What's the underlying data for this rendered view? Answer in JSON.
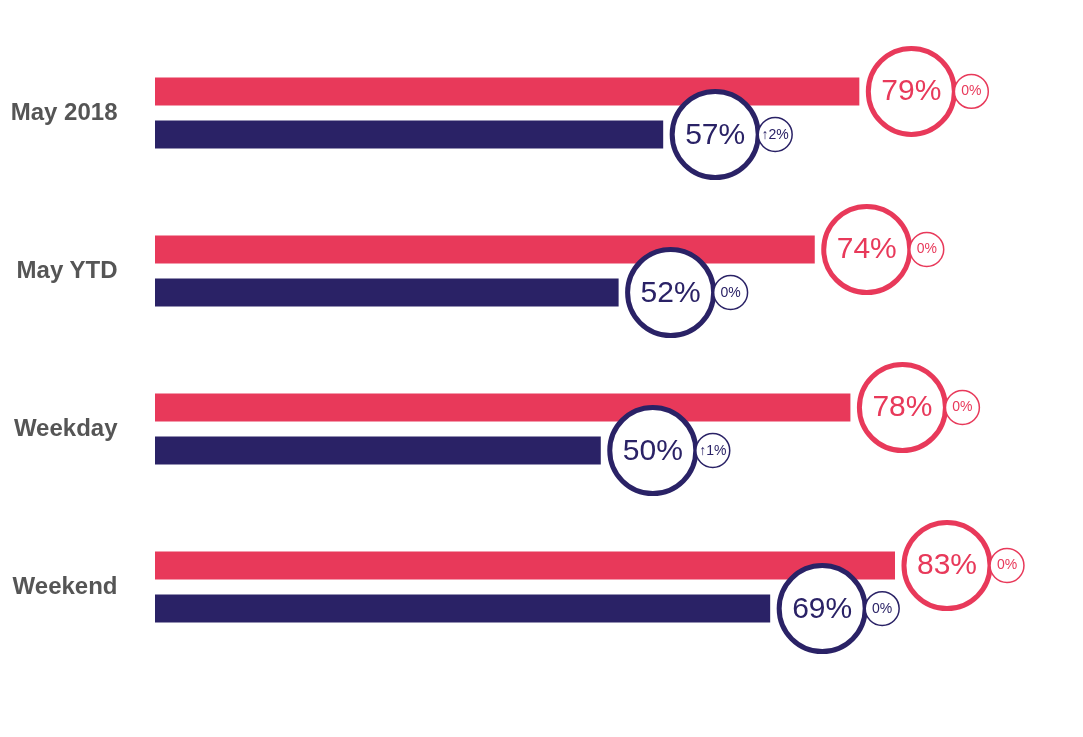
{
  "chart_data": {
    "type": "bar",
    "orientation": "horizontal",
    "categories": [
      "May 2018",
      "May YTD",
      "Weekday",
      "Weekend"
    ],
    "series": [
      {
        "color": "#e8395a",
        "values": [
          79,
          74,
          78,
          83
        ],
        "value_labels": [
          "79%",
          "74%",
          "78%",
          "83%"
        ]
      },
      {
        "color": "#2a2266",
        "values": [
          57,
          52,
          50,
          69
        ],
        "value_labels": [
          "57%",
          "52%",
          "50%",
          "69%"
        ]
      }
    ],
    "tick_labels": "y",
    "annotations": [
      "0%",
      "↑2%",
      "0%",
      "0%",
      "0%",
      "↑1%",
      "0%",
      "0%"
    ]
  }
}
